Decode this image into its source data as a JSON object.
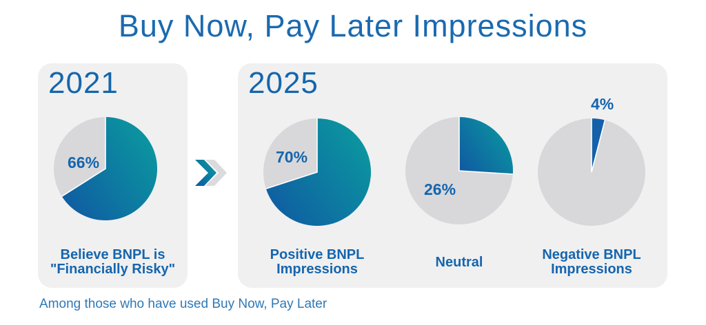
{
  "title": "Buy Now, Pay Later Impressions",
  "footnote": "Among those who have used Buy Now, Pay Later",
  "colors": {
    "title_blue": "#1a6ab0",
    "heading_blue": "#1566ac",
    "label_blue": "#1565ad",
    "footnote_blue": "#2e79b6",
    "pie_blue": "#1057a2",
    "pie_teal": "#0b97a0",
    "pie_blue_solid": "#1460aa",
    "pie_gray": "#d8d8da",
    "panel_bg": "#f0f0f1",
    "chevron_gray": "#dbdbdd"
  },
  "panels": {
    "left": {
      "year": "2021",
      "caption_line1": "Believe BNPL is",
      "caption_line2": "\"Financially Risky\""
    },
    "right": {
      "year": "2025",
      "captions": [
        {
          "line1": "Positive BNPL",
          "line2": "Impressions"
        },
        {
          "line1": "Neutral",
          "line2": ""
        },
        {
          "line1": "Negative BNPL",
          "line2": "Impressions"
        }
      ]
    }
  },
  "chart_data": [
    {
      "type": "pie",
      "panel": "2021",
      "title": "Believe BNPL is \"Financially Risky\"",
      "value_label": "66%",
      "slice_fill": "gradient",
      "slices": [
        {
          "name": "Believe BNPL is \"Financially Risky\"",
          "pct": 66
        },
        {
          "name": "Remainder",
          "pct": 34
        }
      ]
    },
    {
      "type": "pie",
      "panel": "2025",
      "title": "Positive BNPL Impressions",
      "value_label": "70%",
      "slice_fill": "gradient",
      "slices": [
        {
          "name": "Positive BNPL Impressions",
          "pct": 70
        },
        {
          "name": "Remainder",
          "pct": 30
        }
      ]
    },
    {
      "type": "pie",
      "panel": "2025",
      "title": "Neutral",
      "value_label": "26%",
      "slice_fill": "gradient",
      "slices": [
        {
          "name": "Neutral",
          "pct": 26
        },
        {
          "name": "Remainder",
          "pct": 74
        }
      ]
    },
    {
      "type": "pie",
      "panel": "2025",
      "title": "Negative BNPL Impressions",
      "value_label": "4%",
      "slice_fill": "solid",
      "slices": [
        {
          "name": "Negative BNPL Impressions",
          "pct": 4
        },
        {
          "name": "Remainder",
          "pct": 96
        }
      ]
    }
  ]
}
